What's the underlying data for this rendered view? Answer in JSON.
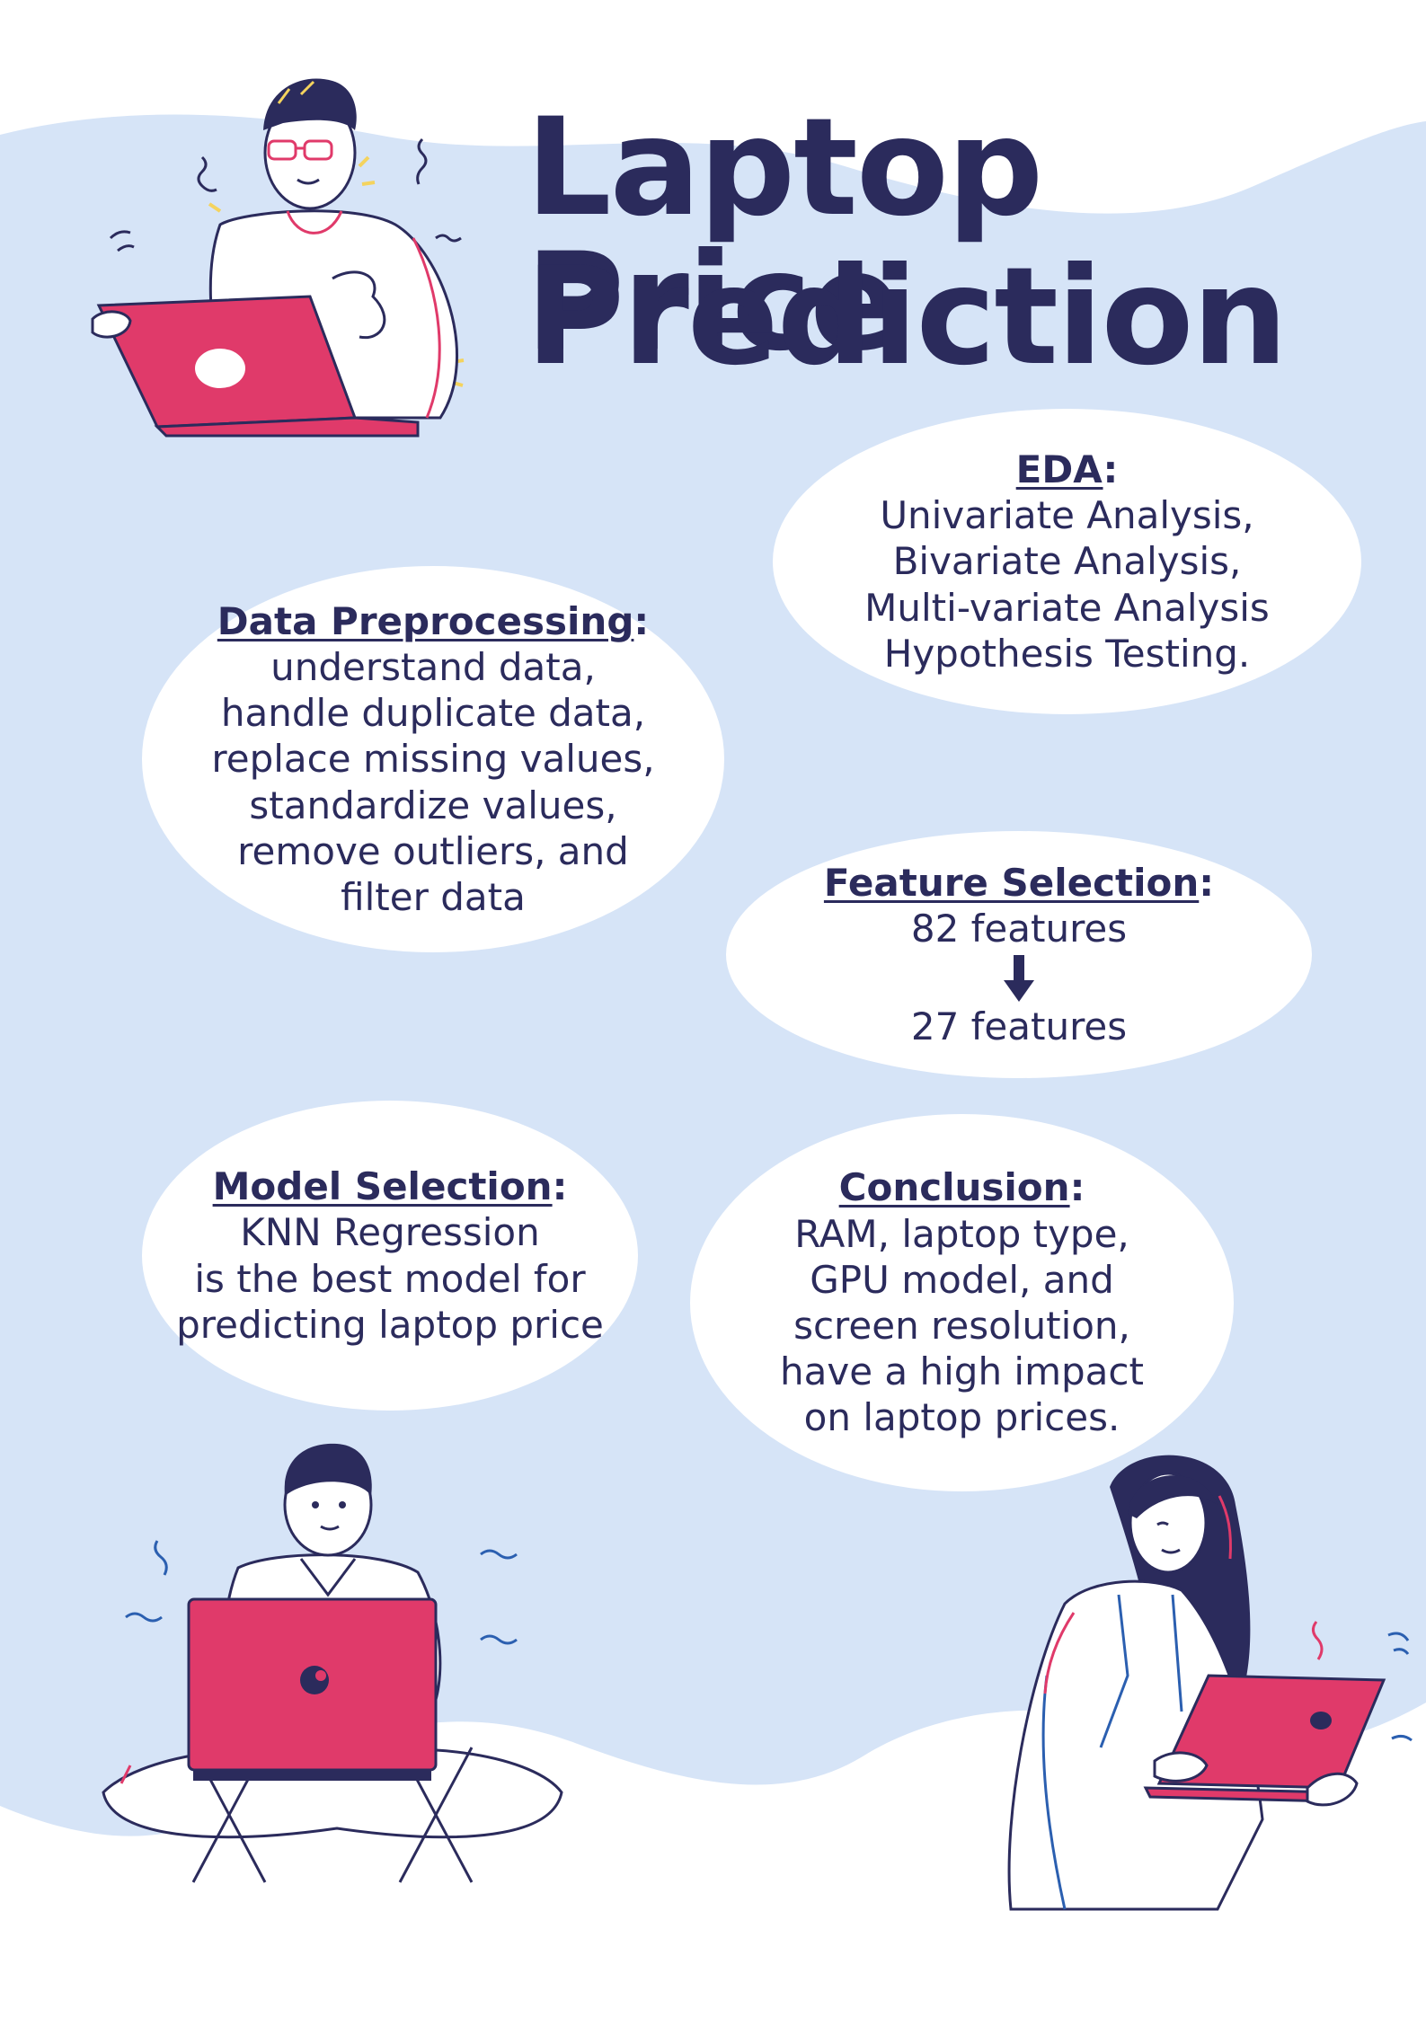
{
  "title": {
    "line1": "Laptop Price",
    "line2": "Prediction"
  },
  "colors": {
    "background_wave": "#d6e4f7",
    "bubble": "#ffffff",
    "text": "#2b2b5c",
    "laptop": "#e03a6a",
    "accent_yellow": "#f4d35e"
  },
  "sections": {
    "eda": {
      "heading": "EDA",
      "colon": ":",
      "lines": [
        "Univariate Analysis,",
        "Bivariate Analysis,",
        "Multi-variate Analysis",
        "Hypothesis Testing."
      ]
    },
    "preprocessing": {
      "heading": "Data Preprocessing",
      "colon": ":",
      "lines": [
        "understand data,",
        "handle duplicate data,",
        "replace missing values,",
        "standardize values,",
        "remove outliers, and",
        "filter data"
      ]
    },
    "feature_selection": {
      "heading": "Feature Selection",
      "colon": ":",
      "from": "82 features",
      "to": "27 features",
      "arrow_icon": "arrow-down-icon"
    },
    "model_selection": {
      "heading": "Model Selection",
      "colon": ":",
      "lines": [
        "KNN Regression",
        "is the best model for",
        "predicting laptop price"
      ]
    },
    "conclusion": {
      "heading": "Conclusion",
      "colon": ":",
      "lines": [
        "RAM, laptop type,",
        "GPU model, and",
        "screen resolution,",
        "have a high impact",
        "on laptop prices."
      ]
    }
  },
  "illustrations": [
    "man-with-glasses-laptop-illustration",
    "man-sitting-laptop-illustration",
    "woman-holding-laptop-illustration"
  ]
}
